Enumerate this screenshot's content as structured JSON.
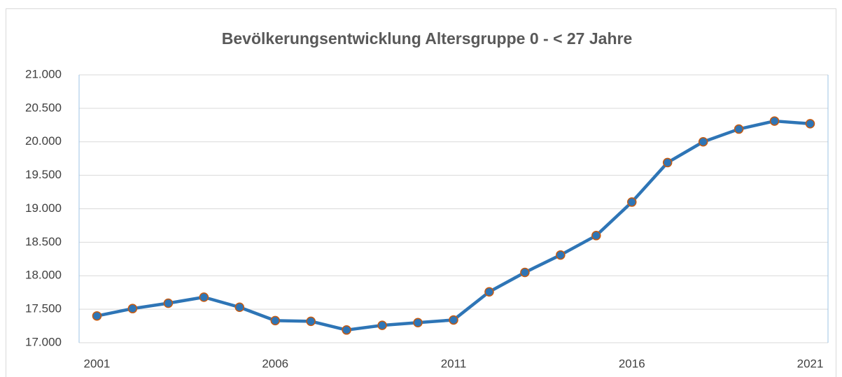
{
  "chart_data": {
    "type": "line",
    "title": "Bevölkerungsentwicklung Altersgruppe 0 - < 27 Jahre",
    "categories": [
      "2001",
      null,
      null,
      null,
      null,
      "2006",
      null,
      null,
      null,
      null,
      "2011",
      null,
      null,
      null,
      null,
      "2016",
      null,
      null,
      null,
      null,
      "2021"
    ],
    "series": [
      {
        "color": "#2e75b6",
        "marker_edge_color": "#c55a11",
        "values": [
          17400,
          17510,
          17590,
          17680,
          17530,
          17330,
          17320,
          17190,
          17260,
          17300,
          17340,
          17760,
          18050,
          18310,
          18600,
          19100,
          19690,
          20000,
          20190,
          20310,
          20270
        ]
      }
    ],
    "ylim": [
      17000,
      21000
    ],
    "yticks": [
      {
        "value": 17000,
        "label": "17.000"
      },
      {
        "value": 17500,
        "label": "17.500"
      },
      {
        "value": 18000,
        "label": "18.000"
      },
      {
        "value": 18500,
        "label": "18.500"
      },
      {
        "value": 19000,
        "label": "19.000"
      },
      {
        "value": 19500,
        "label": "19.500"
      },
      {
        "value": 20000,
        "label": "20.000"
      },
      {
        "value": 20500,
        "label": "20.500"
      },
      {
        "value": 21000,
        "label": "21.000"
      }
    ],
    "grid": true
  }
}
